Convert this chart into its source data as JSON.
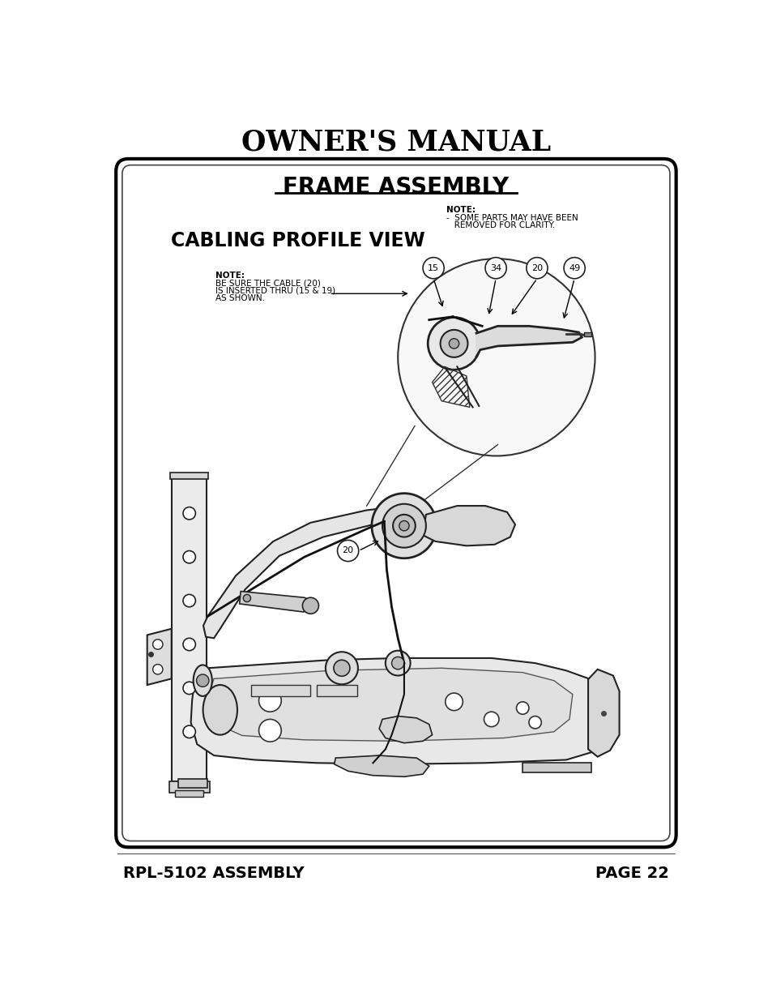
{
  "title": "OWNER'S MANUAL",
  "frame_assembly_title": "FRAME ASSEMBLY",
  "cabling_profile_title": "CABLING PROFILE VIEW",
  "note_top_right_line1": "NOTE:",
  "note_top_right_line2": "-  SOME PARTS MAY HAVE BEEN",
  "note_top_right_line3": "   REMOVED FOR CLARITY.",
  "note_left_line1": "NOTE:",
  "note_left_line2": "BE SURE THE CABLE (20)",
  "note_left_line3": "IS INSERTED THRU (15 & 19)",
  "note_left_line4": "AS SHOWN.",
  "footer_left": "RPL-5102 ASSEMBLY",
  "footer_right": "PAGE 22",
  "bg_color": "#ffffff",
  "border_color": "#000000",
  "text_color": "#000000",
  "part_numbers_zoom": [
    "15",
    "34",
    "20",
    "49"
  ],
  "part_number_main": "20"
}
